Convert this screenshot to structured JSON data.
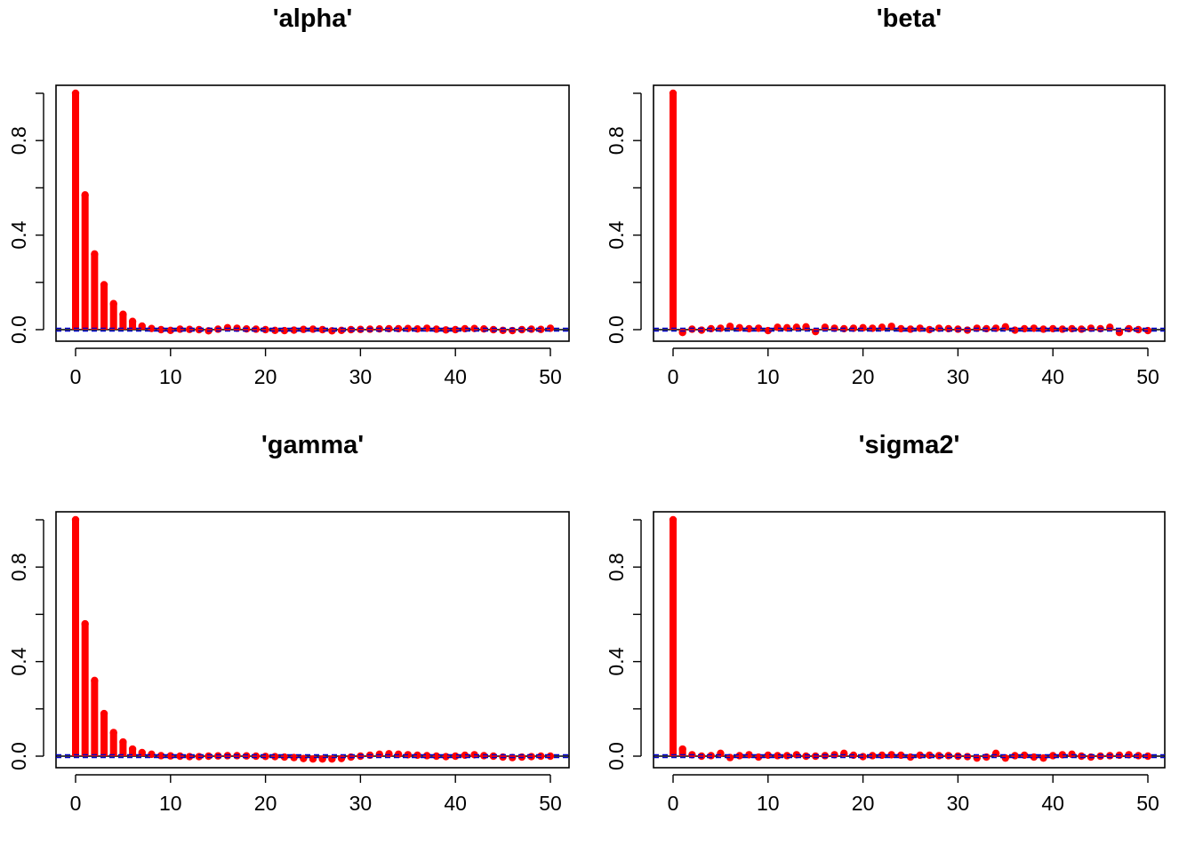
{
  "figure": {
    "layout": "2x2",
    "background": "#ffffff"
  },
  "colors": {
    "bars": "#ff0000",
    "points": "#ff0000",
    "ci_lines": "#0000cc",
    "zero_line": "#000000",
    "axes": "#000000"
  },
  "chart_data": [
    {
      "type": "bar",
      "title": "'alpha'",
      "xlabel": "",
      "ylabel": "",
      "xlim": [
        0,
        50
      ],
      "ylim": [
        -0.05,
        1.0
      ],
      "x_ticks": [
        0,
        10,
        20,
        30,
        40,
        50
      ],
      "y_ticks": [
        0.0,
        0.4,
        0.8
      ],
      "y_tick_labels": [
        "0.0",
        "0.4",
        "0.8"
      ],
      "ci": 0.006,
      "x": [
        0,
        1,
        2,
        3,
        4,
        5,
        6,
        7,
        8,
        9,
        10,
        11,
        12,
        13,
        14,
        15,
        16,
        17,
        18,
        19,
        20,
        21,
        22,
        23,
        24,
        25,
        26,
        27,
        28,
        29,
        30,
        31,
        32,
        33,
        34,
        35,
        36,
        37,
        38,
        39,
        40,
        41,
        42,
        43,
        44,
        45,
        46,
        47,
        48,
        49,
        50
      ],
      "values": [
        1.0,
        0.57,
        0.32,
        0.19,
        0.11,
        0.065,
        0.035,
        0.015,
        0.005,
        0.0,
        -0.003,
        0.002,
        0.001,
        0.0,
        -0.005,
        0.002,
        0.008,
        0.006,
        0.003,
        0.002,
        0.0,
        -0.003,
        -0.004,
        -0.002,
        0.001,
        0.002,
        0.0,
        -0.005,
        -0.003,
        0.0,
        0.001,
        0.002,
        0.003,
        0.004,
        0.004,
        0.005,
        0.003,
        0.006,
        0.002,
        -0.001,
        0.0,
        0.004,
        0.005,
        0.003,
        0.0,
        -0.003,
        -0.004,
        0.0,
        0.002,
        0.001,
        0.006
      ]
    },
    {
      "type": "bar",
      "title": "'beta'",
      "xlabel": "",
      "ylabel": "",
      "xlim": [
        0,
        50
      ],
      "ylim": [
        -0.05,
        1.0
      ],
      "x_ticks": [
        0,
        10,
        20,
        30,
        40,
        50
      ],
      "y_ticks": [
        0.0,
        0.4,
        0.8
      ],
      "y_tick_labels": [
        "0.0",
        "0.4",
        "0.8"
      ],
      "ci": 0.006,
      "x": [
        0,
        1,
        2,
        3,
        4,
        5,
        6,
        7,
        8,
        9,
        10,
        11,
        12,
        13,
        14,
        15,
        16,
        17,
        18,
        19,
        20,
        21,
        22,
        23,
        24,
        25,
        26,
        27,
        28,
        29,
        30,
        31,
        32,
        33,
        34,
        35,
        36,
        37,
        38,
        39,
        40,
        41,
        42,
        43,
        44,
        45,
        46,
        47,
        48,
        49,
        50
      ],
      "values": [
        1.0,
        -0.012,
        0.002,
        -0.002,
        0.004,
        0.006,
        0.014,
        0.008,
        0.004,
        0.006,
        -0.004,
        0.01,
        0.008,
        0.01,
        0.012,
        -0.008,
        0.01,
        0.006,
        0.004,
        0.006,
        0.008,
        0.006,
        0.01,
        0.014,
        0.004,
        0.002,
        0.006,
        0.0,
        0.006,
        0.004,
        0.002,
        -0.002,
        0.006,
        0.004,
        0.006,
        0.012,
        -0.002,
        0.004,
        0.006,
        0.002,
        0.004,
        0.002,
        0.004,
        0.002,
        0.006,
        0.004,
        0.01,
        -0.012,
        0.004,
        0.0,
        -0.004
      ]
    },
    {
      "type": "bar",
      "title": "'gamma'",
      "xlabel": "",
      "ylabel": "",
      "xlim": [
        0,
        50
      ],
      "ylim": [
        -0.05,
        1.0
      ],
      "x_ticks": [
        0,
        10,
        20,
        30,
        40,
        50
      ],
      "y_ticks": [
        0.0,
        0.4,
        0.8
      ],
      "y_tick_labels": [
        "0.0",
        "0.4",
        "0.8"
      ],
      "ci": 0.006,
      "x": [
        0,
        1,
        2,
        3,
        4,
        5,
        6,
        7,
        8,
        9,
        10,
        11,
        12,
        13,
        14,
        15,
        16,
        17,
        18,
        19,
        20,
        21,
        22,
        23,
        24,
        25,
        26,
        27,
        28,
        29,
        30,
        31,
        32,
        33,
        34,
        35,
        36,
        37,
        38,
        39,
        40,
        41,
        42,
        43,
        44,
        45,
        46,
        47,
        48,
        49,
        50
      ],
      "values": [
        1.0,
        0.56,
        0.32,
        0.18,
        0.1,
        0.06,
        0.03,
        0.015,
        0.008,
        0.002,
        0.001,
        0.0,
        -0.002,
        -0.002,
        0.0,
        0.001,
        0.002,
        0.002,
        0.001,
        0.0,
        -0.001,
        -0.002,
        -0.004,
        -0.006,
        -0.01,
        -0.012,
        -0.012,
        -0.012,
        -0.01,
        -0.004,
        0.0,
        0.004,
        0.008,
        0.01,
        0.008,
        0.006,
        0.004,
        0.002,
        0.0,
        -0.002,
        0.0,
        0.004,
        0.006,
        0.002,
        0.0,
        -0.004,
        -0.006,
        -0.004,
        -0.002,
        0.0,
        0.0
      ]
    },
    {
      "type": "bar",
      "title": "'sigma2'",
      "xlabel": "",
      "ylabel": "",
      "xlim": [
        0,
        50
      ],
      "ylim": [
        -0.05,
        1.0
      ],
      "x_ticks": [
        0,
        10,
        20,
        30,
        40,
        50
      ],
      "y_ticks": [
        0.0,
        0.4,
        0.8
      ],
      "y_tick_labels": [
        "0.0",
        "0.4",
        "0.8"
      ],
      "ci": 0.006,
      "x": [
        0,
        1,
        2,
        3,
        4,
        5,
        6,
        7,
        8,
        9,
        10,
        11,
        12,
        13,
        14,
        15,
        16,
        17,
        18,
        19,
        20,
        21,
        22,
        23,
        24,
        25,
        26,
        27,
        28,
        29,
        30,
        31,
        32,
        33,
        34,
        35,
        36,
        37,
        38,
        39,
        40,
        41,
        42,
        43,
        44,
        45,
        46,
        47,
        48,
        49,
        50
      ],
      "values": [
        1.0,
        0.03,
        0.006,
        0.0,
        0.002,
        0.012,
        -0.006,
        0.002,
        0.006,
        -0.004,
        0.004,
        0.002,
        0.002,
        0.006,
        0.0,
        0.0,
        0.002,
        0.006,
        0.012,
        0.004,
        -0.002,
        0.002,
        0.004,
        0.006,
        0.004,
        -0.004,
        0.004,
        0.004,
        0.002,
        0.002,
        0.0,
        -0.002,
        -0.008,
        -0.004,
        0.012,
        -0.008,
        0.002,
        0.004,
        -0.004,
        -0.008,
        0.002,
        0.006,
        0.008,
        0.0,
        -0.004,
        0.0,
        0.002,
        0.004,
        0.006,
        0.002,
        0.0
      ]
    }
  ]
}
